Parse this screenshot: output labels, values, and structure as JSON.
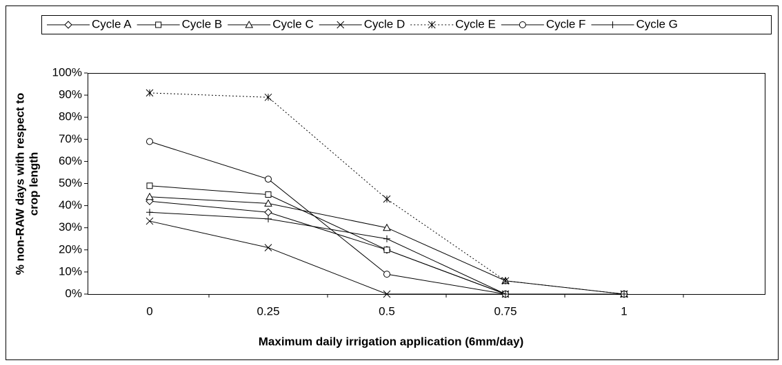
{
  "chart_data": {
    "type": "line",
    "xlabel": "Maximum daily irrigation application (6mm/day)",
    "ylabel": [
      "% non-RAW days with respect to",
      "crop length"
    ],
    "categories": [
      "0",
      "0.25",
      "0.5",
      "0.75",
      "1"
    ],
    "series": [
      {
        "name": "Cycle A",
        "color": "#000000",
        "marker": "diamond",
        "dash": "solid",
        "values": [
          42,
          37,
          20,
          0,
          0
        ]
      },
      {
        "name": "Cycle B",
        "color": "#000000",
        "marker": "square",
        "dash": "solid",
        "values": [
          49,
          45,
          20,
          0,
          0
        ]
      },
      {
        "name": "Cycle C",
        "color": "#000000",
        "marker": "triangle",
        "dash": "solid",
        "values": [
          44,
          41,
          30,
          6,
          0
        ]
      },
      {
        "name": "Cycle D",
        "color": "#000000",
        "marker": "x",
        "dash": "solid",
        "values": [
          33,
          21,
          0,
          0,
          0
        ]
      },
      {
        "name": "Cycle E",
        "color": "#000000",
        "marker": "asterisk",
        "dash": "dotted",
        "values": [
          91,
          89,
          43,
          6,
          0
        ]
      },
      {
        "name": "Cycle F",
        "color": "#000000",
        "marker": "circle",
        "dash": "solid",
        "values": [
          69,
          52,
          9,
          0,
          0
        ]
      },
      {
        "name": "Cycle G",
        "color": "#000000",
        "marker": "plus",
        "dash": "solid",
        "values": [
          37,
          34,
          25,
          0,
          0
        ]
      }
    ],
    "ylim": [
      0,
      100
    ],
    "yticks": [
      {
        "value": 0,
        "label": "0%"
      },
      {
        "value": 10,
        "label": "10%"
      },
      {
        "value": 20,
        "label": "20%"
      },
      {
        "value": 30,
        "label": "30%"
      },
      {
        "value": 40,
        "label": "40%"
      },
      {
        "value": 50,
        "label": "50%"
      },
      {
        "value": 60,
        "label": "60%"
      },
      {
        "value": 70,
        "label": "70%"
      },
      {
        "value": 80,
        "label": "80%"
      },
      {
        "value": 90,
        "label": "90%"
      },
      {
        "value": 100,
        "label": "100%"
      }
    ],
    "legend": "top"
  }
}
